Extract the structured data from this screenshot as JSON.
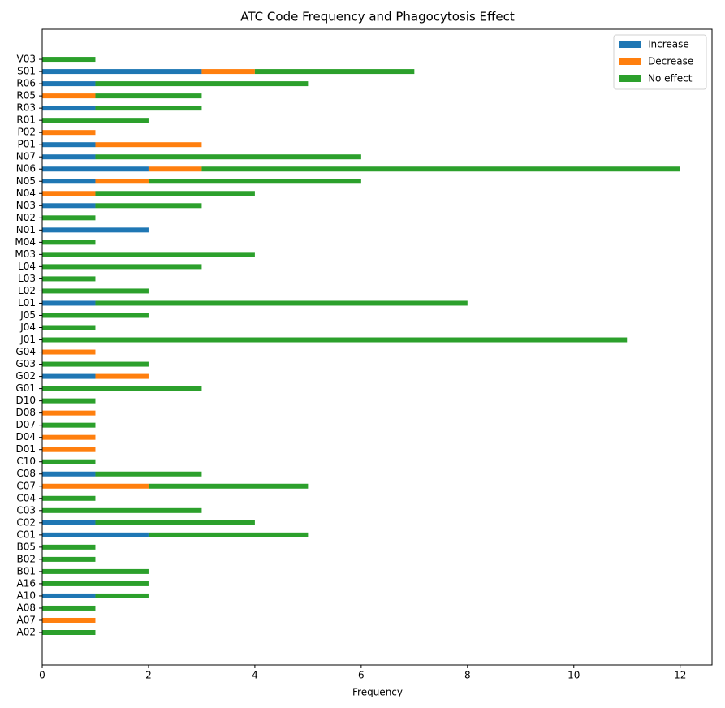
{
  "chart_data": {
    "type": "bar",
    "orientation": "horizontal",
    "stacked": true,
    "title": "ATC Code Frequency and Phagocytosis Effect",
    "x_label": "Frequency",
    "categories": [
      "A02",
      "A07",
      "A08",
      "A10",
      "A16",
      "B01",
      "B02",
      "B05",
      "C01",
      "C02",
      "C03",
      "C04",
      "C07",
      "C08",
      "C10",
      "D01",
      "D04",
      "D07",
      "D08",
      "D10",
      "G01",
      "G02",
      "G03",
      "G04",
      "J01",
      "J04",
      "J05",
      "L01",
      "L02",
      "L03",
      "L04",
      "M03",
      "M04",
      "N01",
      "N02",
      "N03",
      "N04",
      "N05",
      "N06",
      "N07",
      "P01",
      "P02",
      "R01",
      "R03",
      "R05",
      "R06",
      "S01",
      "V03"
    ],
    "series": [
      {
        "name": "Increase",
        "color": "#1f77b4",
        "values": [
          0,
          0,
          0,
          1,
          0,
          0,
          0,
          0,
          2,
          1,
          0,
          0,
          0,
          1,
          0,
          0,
          0,
          0,
          0,
          0,
          0,
          1,
          0,
          0,
          0,
          0,
          0,
          1,
          0,
          0,
          0,
          0,
          0,
          2,
          0,
          1,
          0,
          1,
          2,
          1,
          1,
          0,
          0,
          1,
          0,
          1,
          3,
          0
        ]
      },
      {
        "name": "Decrease",
        "color": "#ff7f0e",
        "values": [
          0,
          1,
          0,
          0,
          0,
          0,
          0,
          0,
          0,
          0,
          0,
          0,
          2,
          0,
          0,
          1,
          1,
          0,
          1,
          0,
          0,
          1,
          0,
          1,
          0,
          0,
          0,
          0,
          0,
          0,
          0,
          0,
          0,
          0,
          0,
          0,
          1,
          1,
          1,
          0,
          2,
          1,
          0,
          0,
          1,
          0,
          1,
          0
        ]
      },
      {
        "name": "No effect",
        "color": "#2ca02c",
        "values": [
          1,
          0,
          1,
          1,
          2,
          2,
          1,
          1,
          3,
          3,
          3,
          1,
          3,
          2,
          1,
          0,
          0,
          1,
          0,
          1,
          3,
          0,
          2,
          0,
          11,
          1,
          2,
          7,
          2,
          1,
          3,
          4,
          1,
          0,
          1,
          2,
          3,
          4,
          9,
          5,
          0,
          0,
          2,
          2,
          2,
          4,
          3,
          1
        ]
      }
    ],
    "xlim": [
      0,
      12.6
    ],
    "xticks": [
      0,
      2,
      4,
      6,
      8,
      10,
      12
    ],
    "legend": "upper right"
  }
}
